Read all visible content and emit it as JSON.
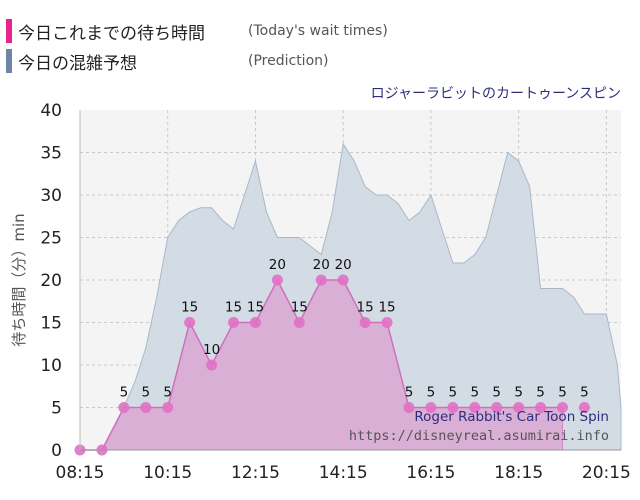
{
  "legend": {
    "today_label": "今日これまでの待ち時間",
    "today_sub": "(Today's wait times)",
    "prediction_label": "今日の混雑予想",
    "prediction_sub": "(Prediction)",
    "today_color": "#e8258f",
    "prediction_color": "#6d84a7"
  },
  "ride_name_ja": "ロジャーラビットのカートゥーンスピン",
  "ride_name_en": "Roger Rabbit's Car Toon Spin",
  "site_url": "https://disneyreal.asumirai.info",
  "chart_data": {
    "type": "area",
    "ylabel": "待ち時間（分）min",
    "ylim": [
      0,
      40
    ],
    "yticks": [
      0,
      5,
      10,
      15,
      20,
      25,
      30,
      35,
      40
    ],
    "xlim": [
      "08:15",
      "20:35"
    ],
    "xticks": [
      "08:15",
      "10:15",
      "12:15",
      "14:15",
      "16:15",
      "18:15",
      "20:15"
    ],
    "grid": true,
    "series": [
      {
        "name": "今日これまでの待ち時間",
        "color": "#e8258f",
        "x": [
          "08:15",
          "08:30",
          "08:45",
          "09:00",
          "09:15",
          "09:30",
          "09:45",
          "10:00",
          "10:15",
          "10:30",
          "10:45",
          "11:00",
          "11:15",
          "11:30",
          "11:45",
          "12:00",
          "12:15",
          "12:30",
          "12:45",
          "13:00",
          "13:15",
          "13:30",
          "13:45",
          "14:00",
          "14:15",
          "14:30",
          "14:45",
          "15:00",
          "15:15",
          "15:30",
          "15:45",
          "16:00",
          "16:15",
          "16:30",
          "16:45",
          "17:00",
          "17:15",
          "17:30",
          "17:45",
          "18:00",
          "18:15",
          "18:30",
          "18:45",
          "19:00",
          "19:15",
          "19:30"
        ],
        "y": [
          0,
          null,
          0,
          null,
          5,
          null,
          5,
          null,
          5,
          null,
          15,
          null,
          10,
          null,
          15,
          null,
          15,
          null,
          20,
          null,
          15,
          null,
          20,
          null,
          20,
          null,
          15,
          null,
          15,
          null,
          5,
          null,
          5,
          null,
          5,
          null,
          5,
          null,
          5,
          null,
          5,
          null,
          5,
          null,
          5,
          null
        ],
        "labeled_points": [
          {
            "x": "09:15",
            "y": 5
          },
          {
            "x": "09:45",
            "y": 5
          },
          {
            "x": "10:15",
            "y": 5
          },
          {
            "x": "10:45",
            "y": 15
          },
          {
            "x": "11:15",
            "y": 10
          },
          {
            "x": "11:45",
            "y": 15
          },
          {
            "x": "12:15",
            "y": 15
          },
          {
            "x": "12:45",
            "y": 20
          },
          {
            "x": "13:15",
            "y": 15
          },
          {
            "x": "13:45",
            "y": 20
          },
          {
            "x": "14:15",
            "y": 20
          },
          {
            "x": "14:45",
            "y": 15
          },
          {
            "x": "15:15",
            "y": 15
          },
          {
            "x": "15:45",
            "y": 5
          },
          {
            "x": "16:15",
            "y": 5
          },
          {
            "x": "16:45",
            "y": 5
          },
          {
            "x": "17:15",
            "y": 5
          },
          {
            "x": "17:45",
            "y": 5
          },
          {
            "x": "18:15",
            "y": 5
          },
          {
            "x": "18:45",
            "y": 5
          },
          {
            "x": "19:15",
            "y": 5
          },
          {
            "x": "19:45",
            "y": 5
          }
        ]
      },
      {
        "name": "今日の混雑予想",
        "color": "#6d84a7",
        "x": [
          "08:15",
          "08:30",
          "08:45",
          "09:00",
          "09:15",
          "09:30",
          "09:45",
          "10:00",
          "10:15",
          "10:30",
          "10:45",
          "11:00",
          "11:15",
          "11:30",
          "11:45",
          "12:00",
          "12:15",
          "12:30",
          "12:45",
          "13:00",
          "13:15",
          "13:30",
          "13:45",
          "14:00",
          "14:15",
          "14:30",
          "14:45",
          "15:00",
          "15:15",
          "15:30",
          "15:45",
          "16:00",
          "16:15",
          "16:30",
          "16:45",
          "17:00",
          "17:15",
          "17:30",
          "17:45",
          "18:00",
          "18:15",
          "18:30",
          "18:45",
          "19:00",
          "19:15",
          "19:30",
          "19:45",
          "20:00",
          "20:15",
          "20:30",
          "20:35"
        ],
        "y": [
          0,
          0,
          0,
          2,
          5,
          8,
          12,
          18,
          25,
          27,
          28,
          28.5,
          28.5,
          27,
          26,
          30,
          34,
          28,
          25,
          25,
          25,
          24,
          23,
          28,
          36,
          34,
          31,
          30,
          30,
          29,
          27,
          28,
          30,
          26,
          22,
          22,
          23,
          25,
          30,
          35,
          34,
          31,
          19,
          19,
          19,
          18,
          16,
          16,
          16,
          10,
          5
        ]
      }
    ]
  }
}
